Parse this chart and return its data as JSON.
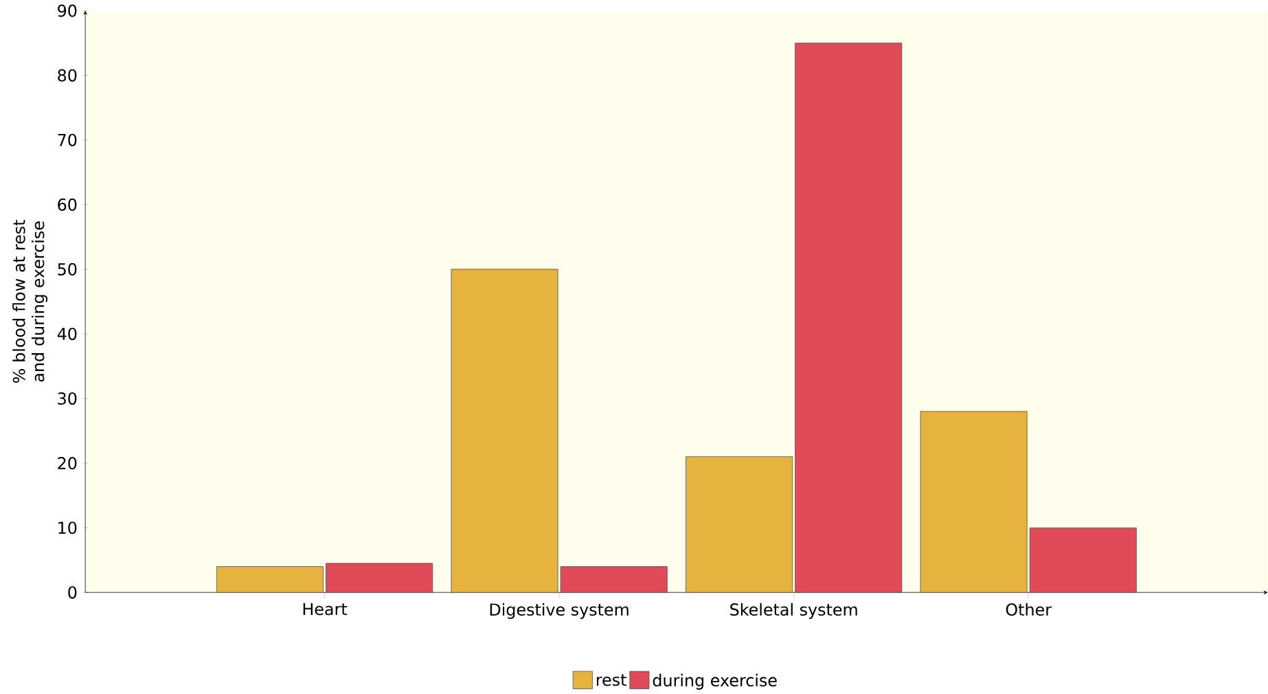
{
  "chart_data": {
    "type": "bar",
    "ylabel": "% blood flow at rest and during exercise",
    "categories": [
      "Heart",
      "Digestive system",
      "Skeletal system",
      "Other"
    ],
    "series": [
      {
        "name": "rest",
        "color": "#e6b43e",
        "values": [
          4,
          50,
          21,
          28
        ]
      },
      {
        "name": "during exercise",
        "color": "#e04b57",
        "values": [
          4.5,
          4,
          85,
          10
        ]
      }
    ],
    "ylim": [
      0,
      90
    ],
    "yticks": [
      0,
      10,
      20,
      30,
      40,
      50,
      60,
      70,
      80,
      90
    ],
    "legend": "bottom"
  }
}
